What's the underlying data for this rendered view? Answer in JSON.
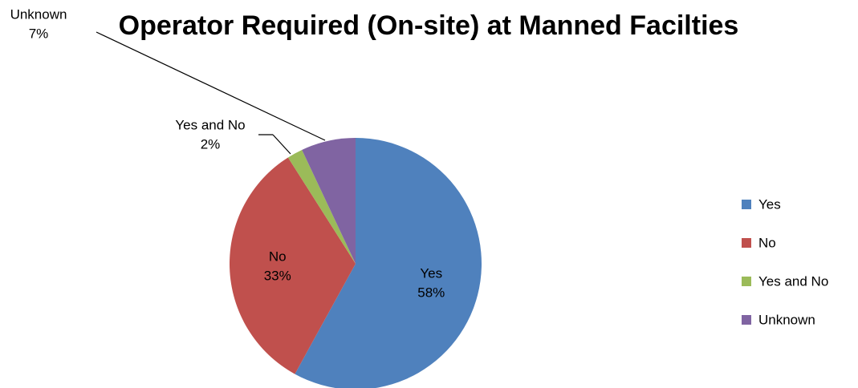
{
  "chart_data": {
    "type": "pie",
    "title": "Operator Required (On-site) at Manned Facilties",
    "categories": [
      "Yes",
      "No",
      "Yes and No",
      "Unknown"
    ],
    "values": [
      58,
      33,
      2,
      7
    ],
    "value_labels": [
      "58%",
      "33%",
      "2%",
      "7%"
    ],
    "colors": [
      "#4f81bd",
      "#c0504d",
      "#9bbb59",
      "#8064a2"
    ],
    "legend": "right"
  }
}
